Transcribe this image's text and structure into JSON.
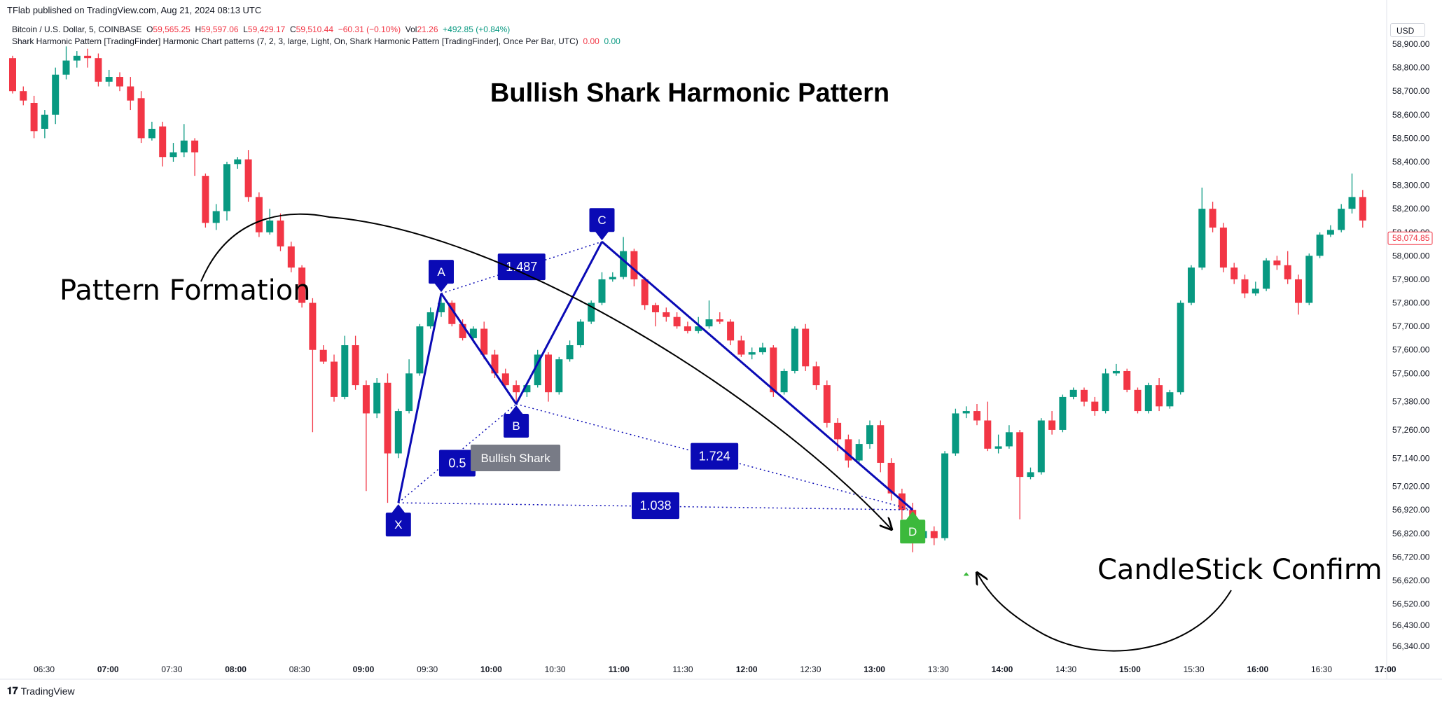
{
  "header": {
    "published": "TFlab published on TradingView.com, Aug 21, 2024 08:13 UTC",
    "symbol": "Bitcoin / U.S. Dollar, 5, COINBASE",
    "o_label": "O",
    "o_value": "59,565.25",
    "h_label": "H",
    "h_value": "59,597.06",
    "l_label": "L",
    "l_value": "59,429.17",
    "c_label": "C",
    "c_value": "59,510.44",
    "change": "−60.31 (−0.10%)",
    "vol_label": "Vol",
    "vol_value": "21.26",
    "vol_change": "+492.85 (+0.84%)",
    "indicator": "Shark Harmonic Pattern [TradingFinder] Harmonic Chart patterns (7, 2, 3, large, Light, On, Shark Harmonic Pattern [TradingFinder], Once Per Bar, UTC)",
    "ind_v1": "0.00",
    "ind_v2": "0.00"
  },
  "currency": "USD",
  "footer": {
    "brand": "TradingView"
  },
  "colors": {
    "up": "#089981",
    "down": "#f23645",
    "pattern": "#0a0ab5",
    "label_bg": "#0a0ab5",
    "d_marker": "#3cb93c",
    "grey_label": "#787b86"
  },
  "chart_data": {
    "type": "candlestick",
    "title": "Bullish Shark Harmonic Pattern",
    "x_ticks": [
      "06:30",
      "07:00",
      "07:30",
      "08:00",
      "08:30",
      "09:00",
      "09:30",
      "10:00",
      "10:30",
      "11:00",
      "11:30",
      "12:00",
      "12:30",
      "13:00",
      "13:30",
      "14:00",
      "14:30",
      "15:00",
      "15:30",
      "16:00",
      "16:30",
      "17:00"
    ],
    "x_ticks_bold": [
      "07:00",
      "08:00",
      "09:00",
      "10:00",
      "11:00",
      "12:00",
      "13:00",
      "14:00",
      "15:00",
      "16:00",
      "17:00"
    ],
    "y_ticks": [
      "58,900.00",
      "58,800.00",
      "58,700.00",
      "58,600.00",
      "58,500.00",
      "58,400.00",
      "58,300.00",
      "58,200.00",
      "58,100.00",
      "58,000.00",
      "57,900.00",
      "57,800.00",
      "57,700.00",
      "57,600.00",
      "57,500.00",
      "57,380.00",
      "57,260.00",
      "57,140.00",
      "57,020.00",
      "56,920.00",
      "56,820.00",
      "56,720.00",
      "56,620.00",
      "56,520.00",
      "56,430.00",
      "56,340.00"
    ],
    "last_price": "58,074.85",
    "candles": [
      [
        58840,
        58700,
        58850,
        58690
      ],
      [
        58700,
        58660,
        58720,
        58640
      ],
      [
        58650,
        58530,
        58680,
        58500
      ],
      [
        58540,
        58600,
        58620,
        58500
      ],
      [
        58600,
        58770,
        58800,
        58560
      ],
      [
        58770,
        58830,
        58890,
        58750
      ],
      [
        58830,
        58850,
        58870,
        58800
      ],
      [
        58850,
        58840,
        58880,
        58800
      ],
      [
        58840,
        58740,
        58860,
        58720
      ],
      [
        58740,
        58760,
        58790,
        58720
      ],
      [
        58760,
        58720,
        58780,
        58700
      ],
      [
        58720,
        58660,
        58760,
        58620
      ],
      [
        58670,
        58500,
        58700,
        58480
      ],
      [
        58500,
        58540,
        58570,
        58490
      ],
      [
        58550,
        58420,
        58570,
        58380
      ],
      [
        58420,
        58440,
        58480,
        58400
      ],
      [
        58440,
        58490,
        58560,
        58420
      ],
      [
        58490,
        58440,
        58500,
        58340
      ],
      [
        58340,
        58140,
        58350,
        58120
      ],
      [
        58140,
        58190,
        58220,
        58110
      ],
      [
        58190,
        58390,
        58400,
        58150
      ],
      [
        58390,
        58410,
        58420,
        58370
      ],
      [
        58410,
        58250,
        58450,
        58230
      ],
      [
        58250,
        58100,
        58270,
        58080
      ],
      [
        58100,
        58150,
        58200,
        58090
      ],
      [
        58150,
        58040,
        58180,
        58020
      ],
      [
        58040,
        57950,
        58060,
        57930
      ],
      [
        57950,
        57800,
        57960,
        57780
      ],
      [
        57800,
        57600,
        57820,
        57250
      ],
      [
        57600,
        57550,
        57620,
        57540
      ],
      [
        57550,
        57400,
        57580,
        57380
      ],
      [
        57400,
        57620,
        57660,
        57390
      ],
      [
        57620,
        57450,
        57660,
        57430
      ],
      [
        57450,
        57330,
        57470,
        57000
      ],
      [
        57330,
        57460,
        57480,
        57310
      ],
      [
        57460,
        57160,
        57500,
        56950
      ],
      [
        57160,
        57340,
        57350,
        57140
      ],
      [
        57340,
        57500,
        57560,
        57330
      ],
      [
        57500,
        57700,
        57710,
        57490
      ],
      [
        57700,
        57760,
        57780,
        57690
      ],
      [
        57760,
        57800,
        57830,
        57740
      ],
      [
        57800,
        57710,
        57810,
        57700
      ],
      [
        57710,
        57650,
        57730,
        57640
      ],
      [
        57650,
        57690,
        57700,
        57630
      ],
      [
        57690,
        57580,
        57720,
        57560
      ],
      [
        57580,
        57500,
        57600,
        57480
      ],
      [
        57500,
        57450,
        57520,
        57430
      ],
      [
        57450,
        57420,
        57470,
        57380
      ],
      [
        57420,
        57450,
        57460,
        57400
      ],
      [
        57450,
        57580,
        57600,
        57440
      ],
      [
        57580,
        57420,
        57590,
        57380
      ],
      [
        57420,
        57560,
        57570,
        57410
      ],
      [
        57560,
        57620,
        57640,
        57550
      ],
      [
        57620,
        57720,
        57730,
        57610
      ],
      [
        57720,
        57800,
        57810,
        57710
      ],
      [
        57800,
        57900,
        57930,
        57790
      ],
      [
        57900,
        57910,
        57930,
        57890
      ],
      [
        57910,
        58020,
        58080,
        57900
      ],
      [
        58020,
        57900,
        58030,
        57870
      ],
      [
        57900,
        57790,
        57910,
        57770
      ],
      [
        57790,
        57760,
        57800,
        57700
      ],
      [
        57760,
        57740,
        57780,
        57720
      ],
      [
        57740,
        57700,
        57760,
        57690
      ],
      [
        57700,
        57680,
        57720,
        57670
      ],
      [
        57680,
        57700,
        57740,
        57670
      ],
      [
        57700,
        57730,
        57810,
        57690
      ],
      [
        57730,
        57720,
        57760,
        57710
      ],
      [
        57720,
        57640,
        57730,
        57620
      ],
      [
        57640,
        57580,
        57660,
        57570
      ],
      [
        57580,
        57590,
        57610,
        57560
      ],
      [
        57590,
        57610,
        57630,
        57580
      ],
      [
        57610,
        57420,
        57620,
        57400
      ],
      [
        57420,
        57510,
        57520,
        57410
      ],
      [
        57510,
        57690,
        57700,
        57500
      ],
      [
        57690,
        57530,
        57710,
        57510
      ],
      [
        57530,
        57450,
        57550,
        57430
      ],
      [
        57450,
        57290,
        57470,
        57270
      ],
      [
        57290,
        57220,
        57310,
        57170
      ],
      [
        57220,
        57130,
        57240,
        57100
      ],
      [
        57130,
        57200,
        57220,
        57120
      ],
      [
        57200,
        57280,
        57300,
        57180
      ],
      [
        57280,
        57120,
        57300,
        57080
      ],
      [
        57120,
        56990,
        57140,
        56960
      ],
      [
        56990,
        56920,
        57010,
        56880
      ],
      [
        56920,
        56800,
        56950,
        56740
      ],
      [
        56800,
        56830,
        56860,
        56780
      ],
      [
        56830,
        56800,
        56850,
        56770
      ],
      [
        56800,
        57160,
        57170,
        56790
      ],
      [
        57160,
        57330,
        57350,
        57150
      ],
      [
        57330,
        57340,
        57360,
        57310
      ],
      [
        57340,
        57300,
        57370,
        57280
      ],
      [
        57300,
        57180,
        57380,
        57170
      ],
      [
        57180,
        57190,
        57240,
        57160
      ],
      [
        57190,
        57250,
        57280,
        57180
      ],
      [
        57250,
        57060,
        57260,
        56880
      ],
      [
        57060,
        57080,
        57100,
        57050
      ],
      [
        57080,
        57300,
        57310,
        57070
      ],
      [
        57300,
        57260,
        57340,
        57240
      ],
      [
        57260,
        57400,
        57410,
        57250
      ],
      [
        57400,
        57430,
        57440,
        57390
      ],
      [
        57430,
        57380,
        57440,
        57360
      ],
      [
        57380,
        57340,
        57400,
        57320
      ],
      [
        57340,
        57500,
        57520,
        57330
      ],
      [
        57500,
        57510,
        57540,
        57490
      ],
      [
        57510,
        57430,
        57520,
        57420
      ],
      [
        57430,
        57340,
        57440,
        57330
      ],
      [
        57340,
        57450,
        57460,
        57330
      ],
      [
        57450,
        57360,
        57480,
        57340
      ],
      [
        57360,
        57420,
        57430,
        57350
      ],
      [
        57420,
        57800,
        57810,
        57410
      ],
      [
        57800,
        57950,
        57960,
        57790
      ],
      [
        57950,
        58200,
        58290,
        57940
      ],
      [
        58200,
        58120,
        58230,
        58100
      ],
      [
        58120,
        57950,
        58140,
        57930
      ],
      [
        57950,
        57900,
        57970,
        57880
      ],
      [
        57900,
        57840,
        57920,
        57820
      ],
      [
        57840,
        57860,
        57890,
        57830
      ],
      [
        57860,
        57980,
        57990,
        57850
      ],
      [
        57980,
        57960,
        58000,
        57940
      ],
      [
        57960,
        57900,
        58020,
        57880
      ],
      [
        57900,
        57800,
        57920,
        57750
      ],
      [
        57800,
        58000,
        58010,
        57790
      ],
      [
        58000,
        58090,
        58100,
        57990
      ],
      [
        58090,
        58110,
        58130,
        58080
      ],
      [
        58110,
        58200,
        58220,
        58100
      ],
      [
        58200,
        58250,
        58350,
        58180
      ],
      [
        58250,
        58150,
        58280,
        58120
      ]
    ],
    "pattern": {
      "points": [
        {
          "name": "X",
          "bar": 36,
          "price": 56950
        },
        {
          "name": "A",
          "bar": 40,
          "price": 57840
        },
        {
          "name": "B",
          "bar": 47,
          "price": 57370
        },
        {
          "name": "C",
          "bar": 55,
          "price": 58060
        },
        {
          "name": "D",
          "bar": 84,
          "price": 56920
        }
      ],
      "ratios": [
        {
          "label": "1.487",
          "from": "A",
          "to": "C"
        },
        {
          "label": "0.5",
          "from": "X",
          "to": "B"
        },
        {
          "label": "1.724",
          "from": "B",
          "to": "D"
        },
        {
          "label": "1.038",
          "from": "X",
          "to": "D"
        }
      ],
      "pattern_label": "Bullish Shark"
    },
    "annotations": [
      {
        "text": "Pattern Formation"
      },
      {
        "text": "CandleStick Confirm"
      }
    ]
  }
}
